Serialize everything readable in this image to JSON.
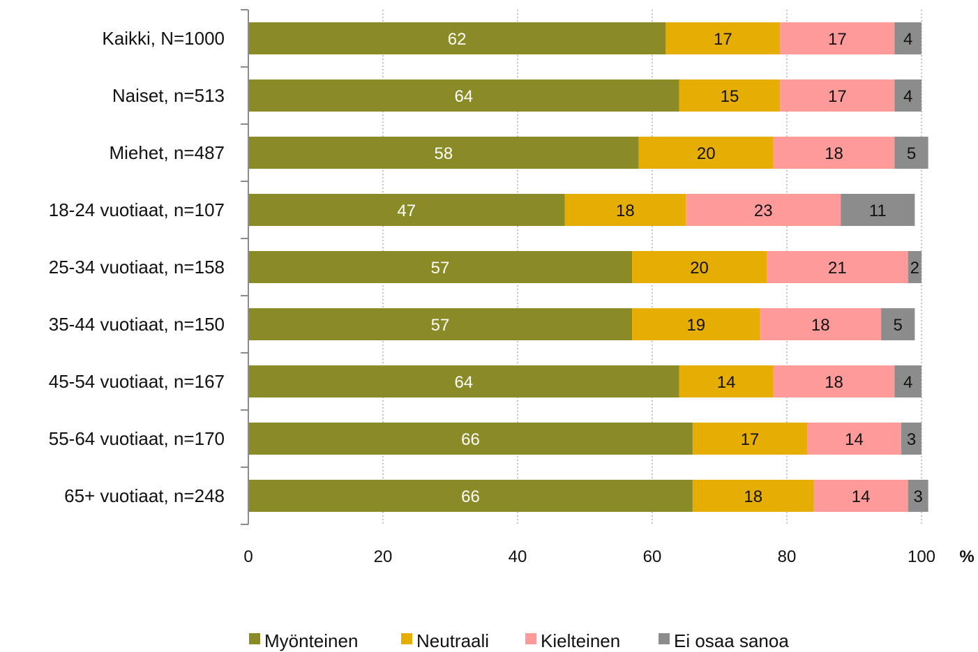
{
  "chart_data": {
    "type": "bar",
    "orientation": "horizontal",
    "stacked": true,
    "categories": [
      "Kaikki, N=1000",
      "Naiset, n=513",
      "Miehet, n=487",
      "18-24 vuotiaat, n=107",
      "25-34 vuotiaat, n=158",
      "35-44 vuotiaat, n=150",
      "45-54 vuotiaat, n=167",
      "55-64 vuotiaat, n=170",
      "65+ vuotiaat, n=248"
    ],
    "series": [
      {
        "name": "Myönteinen",
        "color": "#8a8b27",
        "label_color": "#ffffff",
        "values": [
          62,
          64,
          58,
          47,
          57,
          57,
          64,
          66,
          66
        ]
      },
      {
        "name": "Neutraali",
        "color": "#e6ad03",
        "label_color": "#111111",
        "values": [
          17,
          15,
          20,
          18,
          20,
          19,
          14,
          17,
          18
        ]
      },
      {
        "name": "Kielteinen",
        "color": "#ff9a9a",
        "label_color": "#111111",
        "values": [
          17,
          17,
          18,
          23,
          21,
          18,
          18,
          14,
          14
        ]
      },
      {
        "name": "Ei osaa sanoa",
        "color": "#8c8c8c",
        "label_color": "#111111",
        "values": [
          4,
          4,
          5,
          11,
          2,
          5,
          4,
          3,
          3
        ]
      }
    ],
    "xlim": [
      0,
      100
    ],
    "xticks": [
      "0",
      "20",
      "40",
      "60",
      "80",
      "100"
    ],
    "x_unit_label": "%",
    "grid": true,
    "legend": "bottom"
  }
}
